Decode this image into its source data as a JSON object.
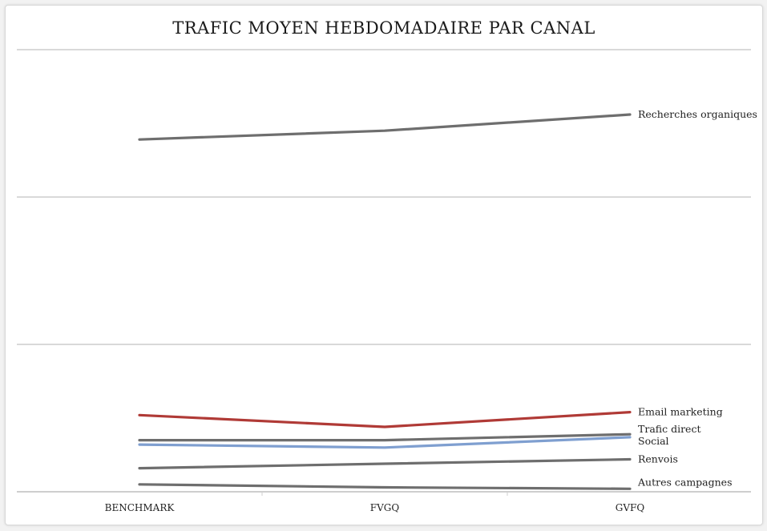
{
  "chart_data": {
    "type": "line",
    "title": "TRAFIC MOYEN HEBDOMADAIRE PAR CANAL",
    "categories": [
      "BENCHMARK",
      "FVGQ",
      "GVFQ"
    ],
    "xlabel": "",
    "ylabel": "",
    "ylim": [
      0,
      3
    ],
    "grid": true,
    "legend": "direct labels at line ends (right)",
    "series": [
      {
        "name": "Recherches organiques",
        "color": "#6e6e6e",
        "values": [
          2.39,
          2.45,
          2.56
        ]
      },
      {
        "name": "Email marketing",
        "color": "#b03a36",
        "values": [
          0.52,
          0.44,
          0.54
        ]
      },
      {
        "name": "Trafic direct",
        "color": "#6e6e6e",
        "values": [
          0.35,
          0.35,
          0.39
        ]
      },
      {
        "name": "Social",
        "color": "#7f9fd0",
        "values": [
          0.32,
          0.3,
          0.37
        ]
      },
      {
        "name": "Renvois",
        "color": "#6e6e6e",
        "values": [
          0.16,
          0.19,
          0.22
        ]
      },
      {
        "name": "Autres campagnes",
        "color": "#6e6e6e",
        "values": [
          0.05,
          0.03,
          0.02
        ]
      }
    ]
  }
}
